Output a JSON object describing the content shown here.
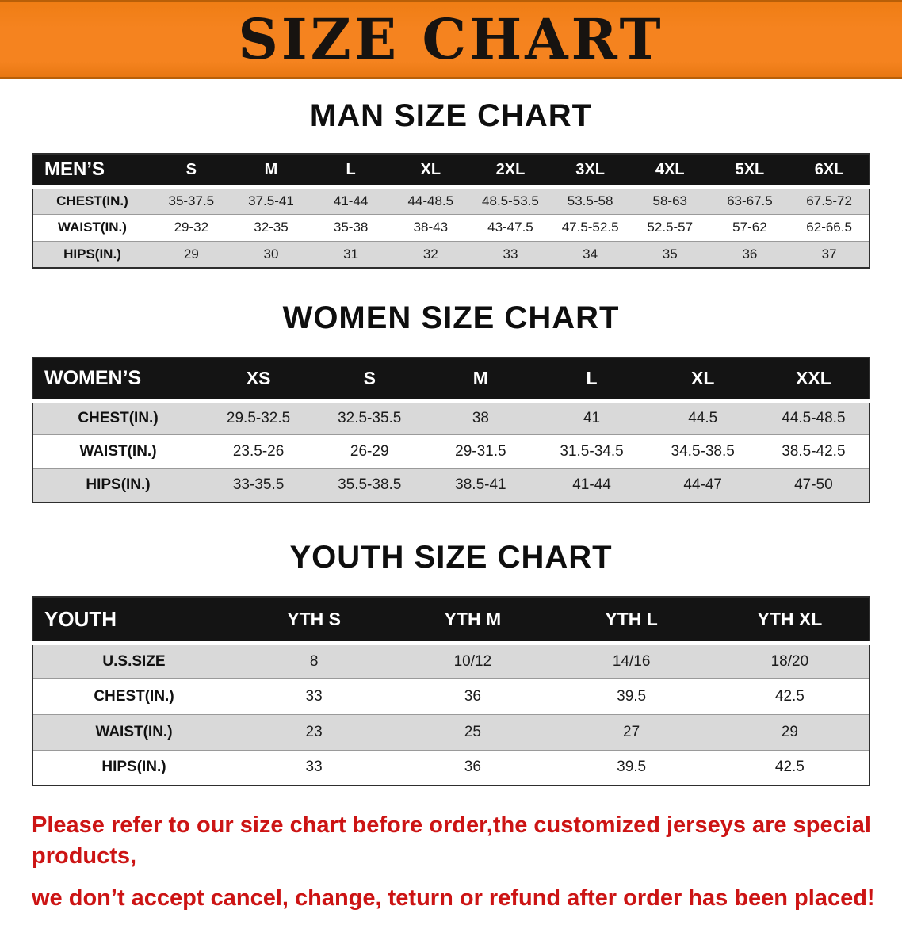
{
  "banner": {
    "title": "SIZE CHART"
  },
  "colors": {
    "banner-bg": "#f5831f",
    "header-bg": "#141414",
    "row-gray": "#d9d9d9",
    "footer-red": "#cc1414"
  },
  "sections": [
    {
      "heading": "MAN SIZE CHART",
      "table": {
        "corner": "MEN’S",
        "columns": [
          "S",
          "M",
          "L",
          "XL",
          "2XL",
          "3XL",
          "4XL",
          "5XL",
          "6XL"
        ],
        "rows": [
          {
            "label": "CHEST(IN.)",
            "values": [
              "35-37.5",
              "37.5-41",
              "41-44",
              "44-48.5",
              "48.5-53.5",
              "53.5-58",
              "58-63",
              "63-67.5",
              "67.5-72"
            ]
          },
          {
            "label": "WAIST(IN.)",
            "values": [
              "29-32",
              "32-35",
              "35-38",
              "38-43",
              "43-47.5",
              "47.5-52.5",
              "52.5-57",
              "57-62",
              "62-66.5"
            ]
          },
          {
            "label": "HIPS(IN.)",
            "values": [
              "29",
              "30",
              "31",
              "32",
              "33",
              "34",
              "35",
              "36",
              "37"
            ]
          }
        ]
      }
    },
    {
      "heading": "WOMEN SIZE CHART",
      "table": {
        "corner": "WOMEN’S",
        "columns": [
          "XS",
          "S",
          "M",
          "L",
          "XL",
          "XXL"
        ],
        "rows": [
          {
            "label": "CHEST(IN.)",
            "values": [
              "29.5-32.5",
              "32.5-35.5",
              "38",
              "41",
              "44.5",
              "44.5-48.5"
            ]
          },
          {
            "label": "WAIST(IN.)",
            "values": [
              "23.5-26",
              "26-29",
              "29-31.5",
              "31.5-34.5",
              "34.5-38.5",
              "38.5-42.5"
            ]
          },
          {
            "label": "HIPS(IN.)",
            "values": [
              "33-35.5",
              "35.5-38.5",
              "38.5-41",
              "41-44",
              "44-47",
              "47-50"
            ]
          }
        ]
      }
    },
    {
      "heading": "YOUTH SIZE CHART",
      "table": {
        "corner": "YOUTH",
        "columns": [
          "YTH S",
          "YTH M",
          "YTH L",
          "YTH XL"
        ],
        "rows": [
          {
            "label": "U.S.SIZE",
            "values": [
              "8",
              "10/12",
              "14/16",
              "18/20"
            ]
          },
          {
            "label": "CHEST(IN.)",
            "values": [
              "33",
              "36",
              "39.5",
              "42.5"
            ]
          },
          {
            "label": "WAIST(IN.)",
            "values": [
              "23",
              "25",
              "27",
              "29"
            ]
          },
          {
            "label": "HIPS(IN.)",
            "values": [
              "33",
              "36",
              "39.5",
              "42.5"
            ]
          }
        ]
      }
    }
  ],
  "footer": {
    "line1": "Please refer to our size chart before order,the customized jerseys are special products,",
    "line2": "we don’t accept cancel, change, teturn or refund after order has been placed!"
  }
}
